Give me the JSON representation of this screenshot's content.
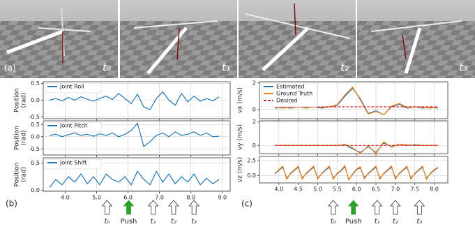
{
  "figure": {
    "panel_labels": [
      "(a)",
      "(b)",
      "(c)"
    ],
    "frame_labels": [
      "t₀",
      "t₁",
      "t₂",
      "t₃"
    ]
  },
  "chart_data": [
    {
      "type": "line",
      "ylabel": [
        "Position",
        "(rad)"
      ],
      "xlim": [
        3.3,
        9.25
      ],
      "ylim": [
        -0.55,
        0.55
      ],
      "yticks": [
        {
          "value": -0.5,
          "label": "-0.5"
        },
        {
          "value": 0,
          "label": "0.0"
        },
        {
          "value": 0.5,
          "label": "0.5"
        }
      ],
      "xticks": [
        4,
        5,
        6,
        7,
        8,
        9
      ],
      "grid": true,
      "legend": "upper left",
      "x": [
        3.5,
        3.7,
        3.9,
        4.1,
        4.3,
        4.5,
        4.7,
        4.9,
        5.1,
        5.3,
        5.5,
        5.7,
        5.9,
        6.1,
        6.3,
        6.5,
        6.7,
        6.9,
        7.1,
        7.3,
        7.5,
        7.7,
        7.9,
        8.1,
        8.3,
        8.5,
        8.7,
        8.9
      ],
      "series": [
        {
          "name": "Joint Roll",
          "color": "#1f77b4",
          "values": [
            0.0,
            0.05,
            -0.02,
            0.08,
            0.0,
            0.1,
            0.03,
            -0.03,
            0.05,
            0.12,
            0.02,
            0.2,
            0.05,
            -0.1,
            0.18,
            -0.2,
            -0.28,
            0.05,
            0.25,
            0.0,
            -0.15,
            0.2,
            -0.05,
            0.12,
            -0.03,
            0.05,
            -0.02,
            0.1
          ]
        }
      ]
    },
    {
      "type": "line",
      "ylabel": [
        "Position",
        "(rad)"
      ],
      "xlim": [
        3.3,
        9.25
      ],
      "ylim": [
        -0.75,
        0.65
      ],
      "yticks": [
        {
          "value": -0.5,
          "label": "-0.5"
        },
        {
          "value": 0,
          "label": "0.0"
        },
        {
          "value": 0.5,
          "label": "0.5"
        }
      ],
      "xticks": [
        4,
        5,
        6,
        7,
        8,
        9
      ],
      "grid": true,
      "legend": "upper left",
      "x": [
        3.5,
        3.7,
        3.9,
        4.1,
        4.3,
        4.5,
        4.7,
        4.9,
        5.1,
        5.3,
        5.5,
        5.7,
        5.9,
        6.1,
        6.3,
        6.5,
        6.7,
        6.9,
        7.1,
        7.3,
        7.5,
        7.7,
        7.9,
        8.1,
        8.3,
        8.5,
        8.7,
        8.9
      ],
      "series": [
        {
          "name": "Joint Pitch",
          "color": "#1f77b4",
          "values": [
            0.05,
            0.1,
            0.0,
            0.08,
            0.15,
            0.05,
            0.1,
            0.02,
            0.12,
            0.05,
            0.15,
            0.0,
            0.1,
            0.25,
            0.55,
            -0.4,
            -0.2,
            0.05,
            0.15,
            0.0,
            0.2,
            0.05,
            0.1,
            0.2,
            0.05,
            0.15,
            0.0,
            0.02
          ]
        }
      ]
    },
    {
      "type": "line",
      "ylabel": [
        "Position",
        "(rad)"
      ],
      "xlim": [
        3.3,
        9.25
      ],
      "ylim": [
        -0.02,
        0.6
      ],
      "yticks": [
        {
          "value": 0,
          "label": "0.0"
        },
        {
          "value": 0.5,
          "label": "0.5"
        }
      ],
      "xticks": [
        {
          "value": 4,
          "label": "4.0"
        },
        {
          "value": 5,
          "label": "5.0"
        },
        {
          "value": 6,
          "label": "6.0"
        },
        {
          "value": 7,
          "label": "7.0"
        },
        {
          "value": 8,
          "label": "8.0"
        },
        {
          "value": 9,
          "label": "9.0"
        }
      ],
      "grid": true,
      "legend": "upper left",
      "x": [
        3.5,
        3.7,
        3.9,
        4.1,
        4.3,
        4.5,
        4.7,
        4.9,
        5.1,
        5.3,
        5.5,
        5.7,
        5.9,
        6.1,
        6.3,
        6.5,
        6.7,
        6.9,
        7.1,
        7.3,
        7.5,
        7.7,
        7.9,
        8.1,
        8.3,
        8.5,
        8.7,
        8.9
      ],
      "series": [
        {
          "name": "Joint Shift",
          "color": "#1f77b4",
          "values": [
            0.05,
            0.2,
            0.1,
            0.25,
            0.15,
            0.3,
            0.12,
            0.25,
            0.1,
            0.3,
            0.2,
            0.15,
            0.25,
            0.1,
            0.35,
            0.2,
            0.1,
            0.35,
            0.15,
            0.3,
            0.12,
            0.25,
            0.15,
            0.3,
            0.1,
            0.22,
            0.12,
            0.2
          ]
        }
      ],
      "annotations": [
        {
          "x": 5.33,
          "label": "t₀"
        },
        {
          "x": 6.02,
          "label": "Push",
          "color": "#2ca02c"
        },
        {
          "x": 6.8,
          "label": "t₁"
        },
        {
          "x": 7.45,
          "label": "t₂"
        },
        {
          "x": 8.1,
          "label": "t₃"
        }
      ]
    },
    {
      "type": "line",
      "ylabel": [
        "vx (m/s)"
      ],
      "xlim": [
        3.5,
        8.35
      ],
      "ylim": [
        -0.7,
        2.1
      ],
      "yticks": [
        0,
        2
      ],
      "xticks": [
        4,
        4.5,
        5,
        5.5,
        6,
        6.5,
        7,
        7.5,
        8
      ],
      "grid": true,
      "legend": "upper left",
      "x": [
        3.9,
        4.1,
        4.3,
        4.5,
        4.7,
        4.9,
        5.1,
        5.3,
        5.5,
        5.7,
        5.9,
        6.1,
        6.3,
        6.5,
        6.7,
        6.9,
        7.1,
        7.3,
        7.5,
        7.7,
        7.9,
        8.1
      ],
      "series": [
        {
          "name": "Estimated",
          "color": "#1f77b4",
          "values": [
            0.1,
            0.15,
            0.1,
            0.2,
            0.15,
            0.2,
            0.1,
            0.2,
            0.3,
            1.0,
            1.6,
            0.8,
            -0.3,
            -0.1,
            -0.4,
            0.2,
            0.4,
            0.1,
            0.2,
            0.1,
            0.15,
            0.1
          ]
        },
        {
          "name": "Ground Truth",
          "color": "#ff7f0e",
          "values": [
            0.15,
            0.1,
            0.15,
            0.2,
            0.1,
            0.2,
            0.15,
            0.2,
            0.35,
            1.1,
            1.7,
            0.7,
            -0.35,
            -0.15,
            -0.4,
            0.25,
            0.45,
            0.15,
            0.2,
            0.15,
            0.1,
            0.15
          ]
        },
        {
          "name": "Desired",
          "color": "#d62728",
          "linestyle": "dashed",
          "values": [
            0.2,
            0.2,
            0.2,
            0.2,
            0.2,
            0.2,
            0.2,
            0.2,
            0.2,
            0.2,
            0.2,
            0.2,
            0.2,
            0.2,
            0.2,
            0.2,
            0.2,
            0.2,
            0.2,
            0.2,
            0.2,
            0.2
          ]
        }
      ]
    },
    {
      "type": "line",
      "ylabel": [
        "vy (m/s)"
      ],
      "xlim": [
        3.5,
        8.35
      ],
      "ylim": [
        -0.7,
        2.1
      ],
      "yticks": [
        0,
        2
      ],
      "xticks": [
        4,
        4.5,
        5,
        5.5,
        6,
        6.5,
        7,
        7.5,
        8
      ],
      "grid": true,
      "x": [
        3.9,
        4.1,
        4.3,
        4.5,
        4.7,
        4.9,
        5.1,
        5.3,
        5.5,
        5.7,
        5.9,
        6.1,
        6.3,
        6.5,
        6.7,
        6.9,
        7.1,
        7.3,
        7.5,
        7.7,
        7.9,
        8.1
      ],
      "series": [
        {
          "name": "Estimated",
          "color": "#1f77b4",
          "values": [
            0,
            0,
            0,
            0,
            0,
            0,
            0,
            0,
            0,
            0.05,
            -0.3,
            -0.6,
            -0.1,
            -0.6,
            0.2,
            -0.1,
            0.1,
            0,
            0.05,
            0,
            0,
            0
          ]
        },
        {
          "name": "Ground Truth",
          "color": "#ff7f0e",
          "values": [
            0,
            0,
            0,
            0,
            0,
            0,
            0,
            0,
            0,
            0.1,
            -0.2,
            -0.7,
            0,
            -0.7,
            0.3,
            -0.15,
            0.1,
            0.05,
            0,
            0,
            0,
            0
          ]
        },
        {
          "name": "Desired",
          "color": "#d62728",
          "linestyle": "dashed",
          "values": [
            0,
            0,
            0,
            0,
            0,
            0,
            0,
            0,
            0,
            0,
            0,
            0,
            0,
            0,
            0,
            0,
            0,
            0,
            0,
            0,
            0,
            0
          ]
        }
      ]
    },
    {
      "type": "line",
      "ylabel": [
        "vz (m/s)"
      ],
      "xlim": [
        3.5,
        8.35
      ],
      "ylim": [
        -1.2,
        3.2
      ],
      "yticks": [
        {
          "value": 0,
          "label": "0.0"
        },
        {
          "value": 2.5,
          "label": "2.5"
        }
      ],
      "xticks": [
        {
          "value": 4,
          "label": "4.0"
        },
        {
          "value": 4.5,
          "label": "4.5"
        },
        {
          "value": 5,
          "label": "5.0"
        },
        {
          "value": 5.5,
          "label": "5.5"
        },
        {
          "value": 6,
          "label": "6.0"
        },
        {
          "value": 6.5,
          "label": "6.5"
        },
        {
          "value": 7,
          "label": "7.0"
        },
        {
          "value": 7.5,
          "label": "7.5"
        },
        {
          "value": 8,
          "label": "8.0"
        }
      ],
      "grid": true,
      "x": [
        3.9,
        4.0,
        4.1,
        4.2,
        4.3,
        4.4,
        4.5,
        4.6,
        4.7,
        4.8,
        4.9,
        5.0,
        5.1,
        5.2,
        5.3,
        5.4,
        5.5,
        5.6,
        5.7,
        5.8,
        5.9,
        6.0,
        6.1,
        6.2,
        6.3,
        6.4,
        6.5,
        6.6,
        6.7,
        6.8,
        6.9,
        7.0,
        7.1,
        7.2,
        7.3,
        7.4,
        7.5,
        7.6,
        7.7,
        7.8,
        7.9,
        8.0,
        8.1
      ],
      "series": [
        {
          "name": "Estimated",
          "color": "#1f77b4",
          "values": [
            0.3,
            0.9,
            1.4,
            -0.4,
            0.3,
            0.9,
            1.4,
            -0.4,
            0.3,
            0.9,
            1.4,
            -0.4,
            0.3,
            0.9,
            1.4,
            -0.4,
            0.3,
            0.8,
            1.5,
            -0.6,
            0.2,
            1.0,
            1.3,
            -0.3,
            0.3,
            0.9,
            1.4,
            -0.4,
            0.3,
            0.9,
            1.4,
            -0.4,
            0.3,
            0.9,
            1.4,
            -0.4,
            0.3,
            0.9,
            1.4,
            -0.4,
            0.3,
            0.9,
            1.3
          ]
        },
        {
          "name": "Ground Truth",
          "color": "#ff7f0e",
          "values": [
            0.4,
            1.0,
            1.6,
            -0.6,
            0.4,
            1.0,
            1.6,
            -0.6,
            0.4,
            1.0,
            1.6,
            -0.6,
            0.4,
            1.0,
            1.6,
            -0.6,
            0.4,
            0.9,
            1.7,
            -0.7,
            0.3,
            1.1,
            1.5,
            -0.5,
            0.4,
            1.0,
            1.6,
            -0.6,
            0.4,
            1.0,
            1.6,
            -0.6,
            0.4,
            1.0,
            1.6,
            -0.6,
            0.4,
            1.0,
            1.6,
            -0.6,
            0.4,
            1.0,
            1.4
          ]
        }
      ],
      "annotations": [
        {
          "x": 5.4,
          "label": "t₀"
        },
        {
          "x": 5.92,
          "label": "Push",
          "color": "#2ca02c"
        },
        {
          "x": 6.53,
          "label": "t₁"
        },
        {
          "x": 7.0,
          "label": "t₂"
        },
        {
          "x": 7.62,
          "label": "t₃"
        }
      ]
    }
  ]
}
